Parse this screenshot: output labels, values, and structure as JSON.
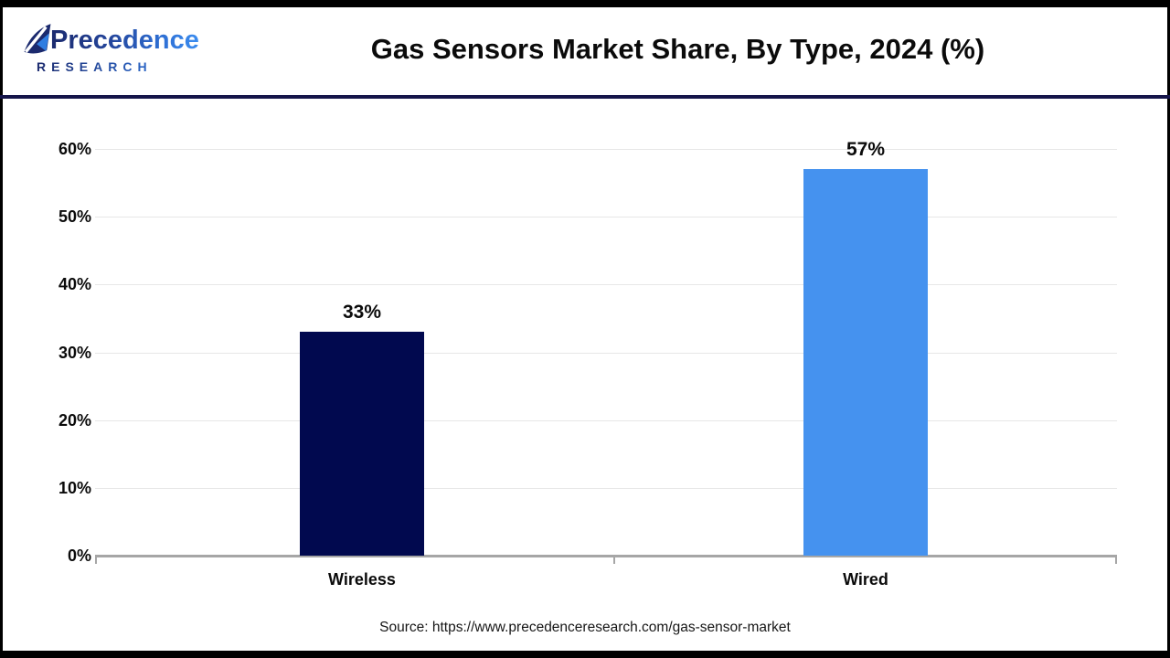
{
  "header": {
    "logo_line1": "Precedence",
    "logo_line2": "RESEARCH",
    "title": "Gas Sensors Market Share, By Type, 2024 (%)"
  },
  "chart_data": {
    "type": "bar",
    "title": "Gas Sensors Market Share, By Type, 2024 (%)",
    "categories": [
      "Wireless",
      "Wired"
    ],
    "values": [
      33,
      57
    ],
    "value_labels": [
      "33%",
      "57%"
    ],
    "bar_colors": [
      "#01094F",
      "#4592EF"
    ],
    "xlabel": "",
    "ylabel": "",
    "ylim": [
      0,
      60
    ],
    "ytick_step": 10,
    "ytick_labels": [
      "0%",
      "10%",
      "20%",
      "30%",
      "40%",
      "50%",
      "60%"
    ],
    "grid": true,
    "legend": false
  },
  "footer": {
    "source": "Source: https://www.precedenceresearch.com/gas-sensor-market"
  },
  "colors": {
    "bar_wireless": "#01094F",
    "bar_wired": "#4592EF",
    "axis_line": "#A6A6A6",
    "gridline": "#E7E7E7",
    "divider": "#15154A",
    "frame": "#000000",
    "logo_navy": "#1B2A6E",
    "logo_blue": "#3B8DF0"
  }
}
